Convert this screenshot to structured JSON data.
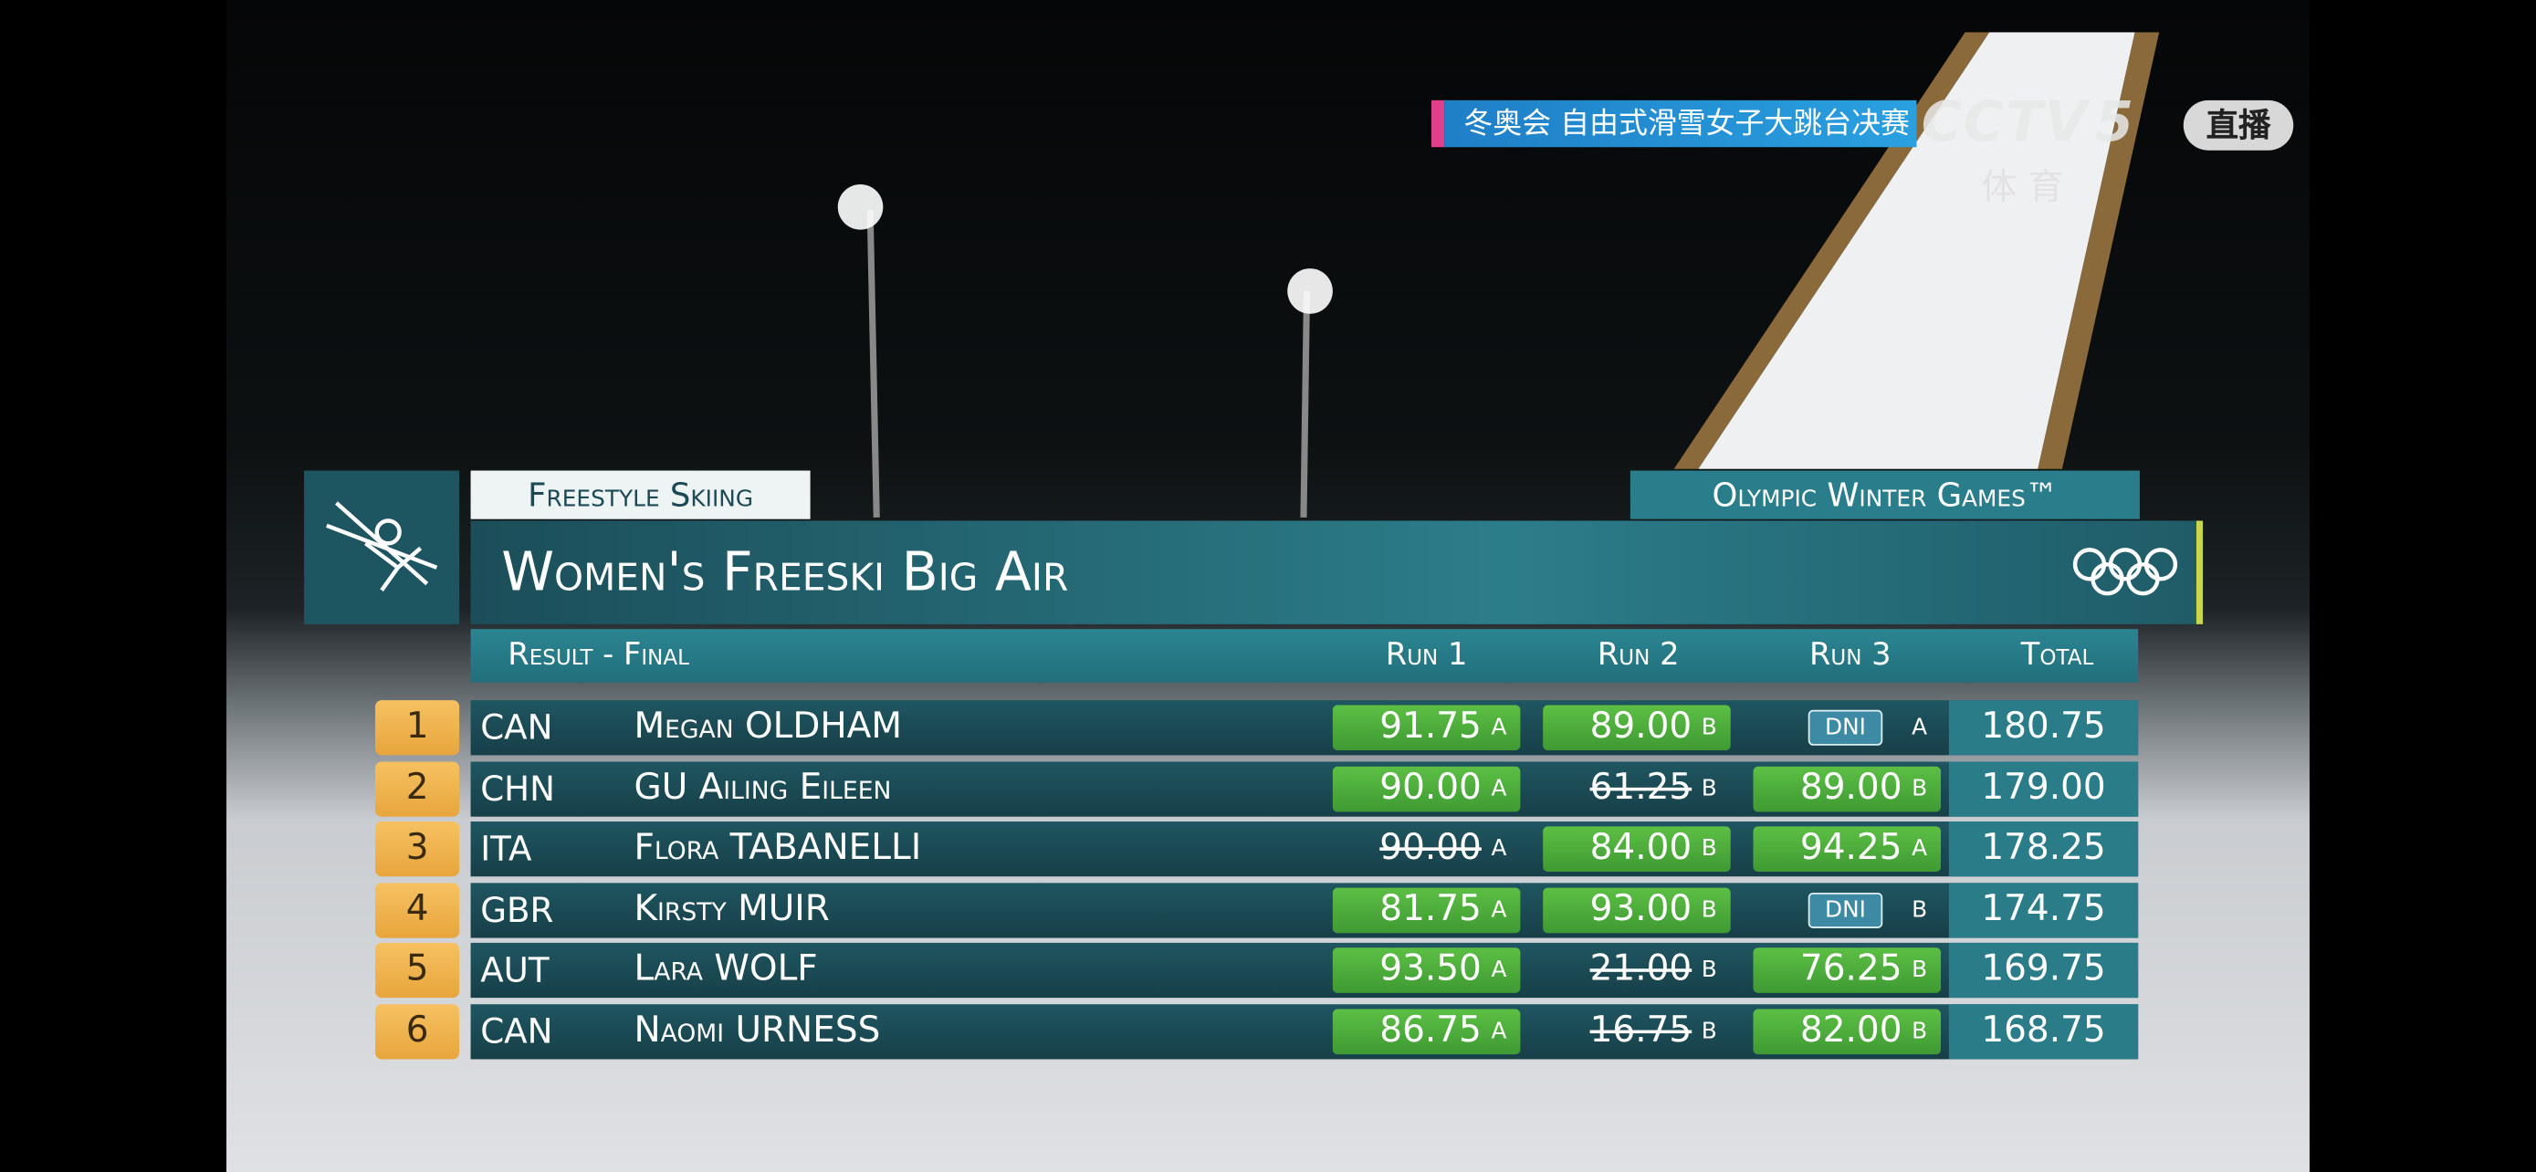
{
  "broadcast": {
    "banner": "冬奥会 自由式滑雪女子大跳台决赛",
    "channel": "CCTV",
    "channel_number": "5",
    "channel_sub": "体 育",
    "live": "直播"
  },
  "graphic": {
    "discipline": "Freestyle Skiing",
    "event": "Olympic Winter Games™",
    "title": "Women's Freeski Big Air",
    "phase": "Result - Final",
    "columns": [
      "Run 1",
      "Run 2",
      "Run 3",
      "Total"
    ],
    "rows": [
      {
        "rank": "1",
        "noc": "CAN",
        "name": "Megan OLDHAM",
        "runs": [
          {
            "score": "91.75",
            "judge": "A",
            "style": "counted"
          },
          {
            "score": "89.00",
            "judge": "B",
            "style": "counted"
          },
          {
            "score": "DNI",
            "judge": "A",
            "style": "dni"
          }
        ],
        "total": "180.75"
      },
      {
        "rank": "2",
        "noc": "CHN",
        "name": "GU Ailing Eileen",
        "runs": [
          {
            "score": "90.00",
            "judge": "A",
            "style": "counted"
          },
          {
            "score": "61.25",
            "judge": "B",
            "style": "dropped"
          },
          {
            "score": "89.00",
            "judge": "B",
            "style": "counted"
          }
        ],
        "total": "179.00"
      },
      {
        "rank": "3",
        "noc": "ITA",
        "name": "Flora TABANELLI",
        "runs": [
          {
            "score": "90.00",
            "judge": "A",
            "style": "dropped"
          },
          {
            "score": "84.00",
            "judge": "B",
            "style": "counted"
          },
          {
            "score": "94.25",
            "judge": "A",
            "style": "counted"
          }
        ],
        "total": "178.25"
      },
      {
        "rank": "4",
        "noc": "GBR",
        "name": "Kirsty MUIR",
        "runs": [
          {
            "score": "81.75",
            "judge": "A",
            "style": "counted"
          },
          {
            "score": "93.00",
            "judge": "B",
            "style": "counted"
          },
          {
            "score": "DNI",
            "judge": "B",
            "style": "dni"
          }
        ],
        "total": "174.75"
      },
      {
        "rank": "5",
        "noc": "AUT",
        "name": "Lara WOLF",
        "runs": [
          {
            "score": "93.50",
            "judge": "A",
            "style": "counted"
          },
          {
            "score": "21.00",
            "judge": "B",
            "style": "dropped"
          },
          {
            "score": "76.25",
            "judge": "B",
            "style": "counted"
          }
        ],
        "total": "169.75"
      },
      {
        "rank": "6",
        "noc": "CAN",
        "name": "Naomi URNESS",
        "runs": [
          {
            "score": "86.75",
            "judge": "A",
            "style": "counted"
          },
          {
            "score": "16.75",
            "judge": "B",
            "style": "dropped"
          },
          {
            "score": "82.00",
            "judge": "B",
            "style": "counted"
          }
        ],
        "total": "168.75"
      }
    ]
  }
}
